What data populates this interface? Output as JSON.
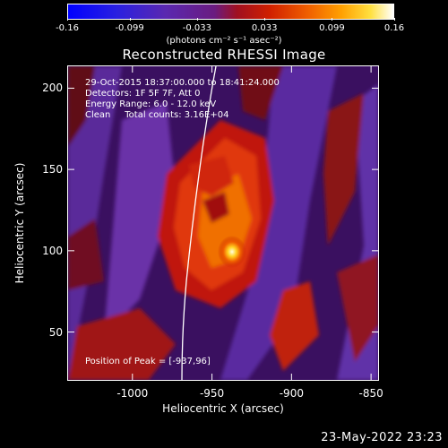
{
  "colorbar": {
    "ticks": [
      "-0.16",
      "-0.099",
      "-0.033",
      "0.033",
      "0.099",
      "0.16"
    ],
    "tick_values": [
      -0.16,
      -0.099,
      -0.033,
      0.033,
      0.099,
      0.16
    ],
    "range": [
      -0.16,
      0.16
    ],
    "units": "(photons cm⁻² s⁻¹ asec⁻²)"
  },
  "title": "Reconstructed RHESSI Image",
  "info": {
    "line1": "29-Oct-2015 18:37:00.000 to 18:41:24.000",
    "line2": "Detectors: 1F 5F 7F, Att 0",
    "line3": "Energy Range: 6.0 - 12.0 keV",
    "line4": "Clean     Total counts: 3.16E+04"
  },
  "peak": "Position of Peak = [-937,96]",
  "axes": {
    "xlabel": "Heliocentric X (arcsec)",
    "ylabel": "Heliocentric Y (arcsec)",
    "xticks": [
      "-1000",
      "-950",
      "-900",
      "-850"
    ],
    "xtick_values": [
      -1000,
      -950,
      -900,
      -850
    ],
    "yticks": [
      "200",
      "150",
      "100",
      "50"
    ],
    "ytick_values": [
      200,
      150,
      100,
      50
    ],
    "xlim": [
      -1041,
      -845
    ],
    "ylim": [
      20,
      214
    ]
  },
  "timestamp": "23-May-2022 23:23",
  "colors": {
    "background": "#000000",
    "low": "#1a28ff",
    "mid_low": "#6a2fa0",
    "mid": "#b01818",
    "high": "#ffd020",
    "peak": "#ffffe0"
  }
}
